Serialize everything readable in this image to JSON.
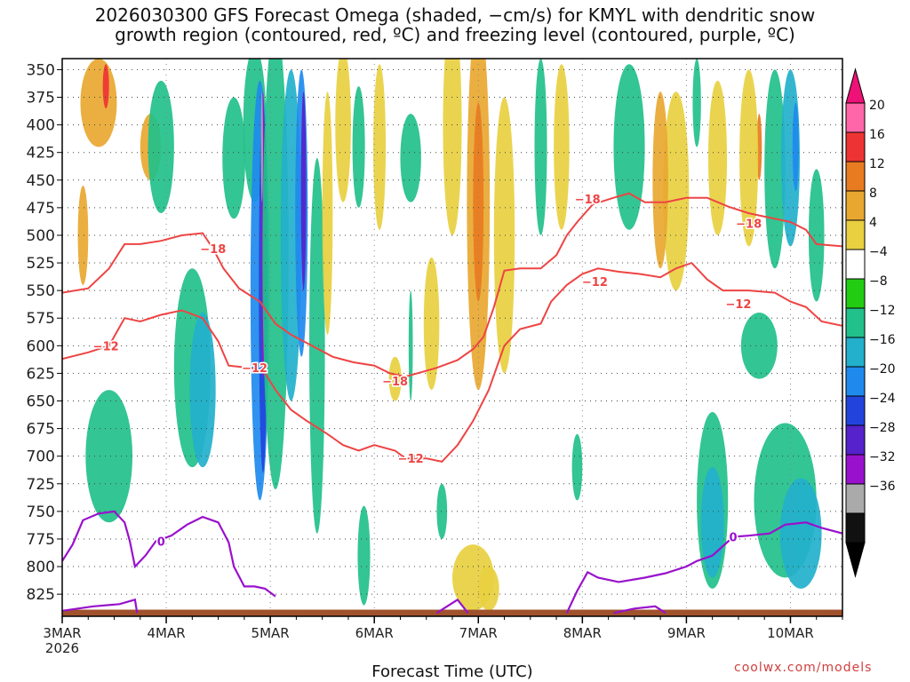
{
  "title": "2026030300 GFS Forecast Omega (shaded, −cm/s) for KMYL with dendritic snow\ngrowth region (contoured, red, ºC) and freezing level (contoured, purple, ºC)",
  "credit": "coolwx.com/models",
  "chart_data": {
    "type": "heatmap",
    "xlabel": "Forecast Time (UTC)",
    "x_ticks": [
      "3MAR",
      "4MAR",
      "5MAR",
      "6MAR",
      "7MAR",
      "8MAR",
      "9MAR",
      "10MAR"
    ],
    "x_tick_sublabel": "2026",
    "x_range_days": [
      0,
      7.5
    ],
    "y_ticks": [
      350,
      375,
      400,
      425,
      450,
      475,
      500,
      525,
      550,
      575,
      600,
      625,
      650,
      675,
      700,
      725,
      750,
      775,
      800,
      825
    ],
    "ylim": [
      340,
      845
    ],
    "grid": true,
    "colorbar": {
      "labels": [
        "20",
        "16",
        "12",
        "8",
        "4",
        "−4",
        "−8",
        "−12",
        "−16",
        "−20",
        "−24",
        "−28",
        "−32",
        "−36"
      ],
      "colors": [
        "#ff66aa",
        "#ee3333",
        "#e87b20",
        "#e8a830",
        "#e8d040",
        "#ffffff",
        "#22cc11",
        "#22c08a",
        "#22b0cc",
        "#1e8aee",
        "#2244dd",
        "#5522cc",
        "#9911cc",
        "#aaaaaa",
        "#111111"
      ],
      "top_color": "#ee1177",
      "bottom_color": "#000000"
    },
    "dgz_contour_labels": [
      {
        "value": "−18",
        "t": 1.45,
        "p": 512
      },
      {
        "value": "−12",
        "t": 1.85,
        "p": 620
      },
      {
        "value": "−12",
        "t": 0.42,
        "p": 600
      },
      {
        "value": "−18",
        "t": 3.2,
        "p": 632
      },
      {
        "value": "−12",
        "t": 3.35,
        "p": 702
      },
      {
        "value": "−18",
        "t": 5.05,
        "p": 467
      },
      {
        "value": "−12",
        "t": 5.12,
        "p": 542
      },
      {
        "value": "−18",
        "t": 6.6,
        "p": 489
      },
      {
        "value": "−12",
        "t": 6.5,
        "p": 562
      }
    ],
    "freezing_labels": [
      {
        "value": "0",
        "t": 0.95,
        "p": 777
      },
      {
        "value": "0",
        "t": 6.45,
        "p": 773
      }
    ],
    "dgz_contours": [
      [
        [
          0,
          552
        ],
        [
          0.25,
          548
        ],
        [
          0.45,
          530
        ],
        [
          0.6,
          508
        ],
        [
          0.75,
          508
        ],
        [
          0.95,
          505
        ],
        [
          1.15,
          500
        ],
        [
          1.35,
          498
        ],
        [
          1.45,
          512
        ],
        [
          1.55,
          530
        ],
        [
          1.7,
          548
        ],
        [
          1.9,
          560
        ],
        [
          2.05,
          580
        ],
        [
          2.2,
          590
        ],
        [
          2.4,
          600
        ],
        [
          2.6,
          610
        ],
        [
          2.8,
          615
        ],
        [
          3.0,
          618
        ],
        [
          3.15,
          625
        ],
        [
          3.3,
          628
        ],
        [
          3.45,
          624
        ],
        [
          3.6,
          620
        ],
        [
          3.8,
          613
        ],
        [
          3.95,
          603
        ],
        [
          4.05,
          592
        ],
        [
          4.15,
          565
        ],
        [
          4.25,
          532
        ],
        [
          4.4,
          530
        ],
        [
          4.6,
          530
        ],
        [
          4.75,
          518
        ],
        [
          4.85,
          500
        ],
        [
          4.95,
          488
        ],
        [
          5.1,
          472
        ],
        [
          5.3,
          466
        ],
        [
          5.45,
          462
        ],
        [
          5.6,
          470
        ],
        [
          5.8,
          470
        ],
        [
          6.0,
          466
        ],
        [
          6.2,
          466
        ],
        [
          6.4,
          474
        ],
        [
          6.6,
          480
        ],
        [
          6.8,
          484
        ],
        [
          7.0,
          488
        ],
        [
          7.15,
          495
        ],
        [
          7.25,
          508
        ],
        [
          7.5,
          510
        ]
      ],
      [
        [
          0,
          612
        ],
        [
          0.25,
          606
        ],
        [
          0.45,
          600
        ],
        [
          0.6,
          575
        ],
        [
          0.75,
          578
        ],
        [
          0.95,
          572
        ],
        [
          1.15,
          568
        ],
        [
          1.35,
          575
        ],
        [
          1.5,
          596
        ],
        [
          1.6,
          618
        ],
        [
          1.8,
          620
        ],
        [
          1.95,
          625
        ],
        [
          2.05,
          640
        ],
        [
          2.2,
          658
        ],
        [
          2.35,
          668
        ],
        [
          2.55,
          680
        ],
        [
          2.7,
          690
        ],
        [
          2.85,
          695
        ],
        [
          3.0,
          690
        ],
        [
          3.2,
          695
        ],
        [
          3.3,
          702
        ],
        [
          3.5,
          702
        ],
        [
          3.65,
          705
        ],
        [
          3.8,
          690
        ],
        [
          3.95,
          668
        ],
        [
          4.1,
          640
        ],
        [
          4.25,
          600
        ],
        [
          4.4,
          585
        ],
        [
          4.6,
          580
        ],
        [
          4.7,
          560
        ],
        [
          4.85,
          545
        ],
        [
          5.0,
          535
        ],
        [
          5.15,
          530
        ],
        [
          5.35,
          533
        ],
        [
          5.55,
          535
        ],
        [
          5.75,
          538
        ],
        [
          5.9,
          530
        ],
        [
          6.05,
          525
        ],
        [
          6.2,
          540
        ],
        [
          6.35,
          550
        ],
        [
          6.6,
          550
        ],
        [
          6.85,
          552
        ],
        [
          7.0,
          560
        ],
        [
          7.15,
          565
        ],
        [
          7.3,
          578
        ],
        [
          7.5,
          582
        ]
      ]
    ],
    "freezing_contours": [
      [
        [
          0,
          795
        ],
        [
          0.1,
          780
        ],
        [
          0.2,
          758
        ],
        [
          0.35,
          752
        ],
        [
          0.5,
          750
        ],
        [
          0.6,
          760
        ],
        [
          0.65,
          777
        ],
        [
          0.7,
          800
        ],
        [
          0.8,
          790
        ],
        [
          0.9,
          777
        ],
        [
          1.05,
          772
        ],
        [
          1.2,
          762
        ],
        [
          1.35,
          755
        ],
        [
          1.5,
          760
        ],
        [
          1.6,
          778
        ],
        [
          1.65,
          800
        ],
        [
          1.75,
          818
        ],
        [
          1.85,
          818
        ],
        [
          1.95,
          820
        ],
        [
          2.05,
          827
        ]
      ],
      [
        [
          0,
          840
        ],
        [
          0.3,
          836
        ],
        [
          0.55,
          834
        ],
        [
          0.7,
          830
        ],
        [
          0.72,
          842
        ]
      ],
      [
        [
          3.6,
          842
        ],
        [
          3.8,
          830
        ],
        [
          3.9,
          842
        ]
      ],
      [
        [
          4.85,
          842
        ],
        [
          4.95,
          822
        ],
        [
          5.05,
          805
        ],
        [
          5.15,
          810
        ],
        [
          5.35,
          814
        ],
        [
          5.6,
          810
        ],
        [
          5.8,
          806
        ],
        [
          6.0,
          800
        ],
        [
          6.1,
          795
        ],
        [
          6.25,
          790
        ],
        [
          6.45,
          773
        ],
        [
          6.6,
          772
        ],
        [
          6.8,
          770
        ],
        [
          6.95,
          762
        ],
        [
          7.15,
          760
        ],
        [
          7.3,
          765
        ],
        [
          7.5,
          770
        ]
      ],
      [
        [
          5.3,
          842
        ],
        [
          5.5,
          838
        ],
        [
          5.7,
          836
        ],
        [
          5.8,
          842
        ]
      ]
    ],
    "omega_patches": [
      {
        "value": 8,
        "t": 0.35,
        "p": 380,
        "w": 0.35,
        "h": 80
      },
      {
        "value": 16,
        "t": 0.42,
        "p": 365,
        "w": 0.06,
        "h": 40
      },
      {
        "value": 8,
        "t": 0.85,
        "p": 420,
        "w": 0.2,
        "h": 60
      },
      {
        "value": -8,
        "t": 0.95,
        "p": 420,
        "w": 0.25,
        "h": 120
      },
      {
        "value": 8,
        "t": 0.2,
        "p": 500,
        "w": 0.1,
        "h": 90
      },
      {
        "value": -8,
        "t": 1.25,
        "p": 620,
        "w": 0.35,
        "h": 180
      },
      {
        "value": -12,
        "t": 1.35,
        "p": 640,
        "w": 0.25,
        "h": 140
      },
      {
        "value": -8,
        "t": 0.45,
        "p": 700,
        "w": 0.45,
        "h": 120
      },
      {
        "value": -8,
        "t": 1.65,
        "p": 430,
        "w": 0.22,
        "h": 110
      },
      {
        "value": -8,
        "t": 1.85,
        "p": 400,
        "w": 0.22,
        "h": 140
      },
      {
        "value": -16,
        "t": 1.9,
        "p": 550,
        "w": 0.18,
        "h": 380
      },
      {
        "value": -20,
        "t": 1.93,
        "p": 550,
        "w": 0.08,
        "h": 330
      },
      {
        "value": -28,
        "t": 1.93,
        "p": 500,
        "w": 0.04,
        "h": 260
      },
      {
        "value": -32,
        "t": 1.92,
        "p": 420,
        "w": 0.02,
        "h": 100
      },
      {
        "value": -8,
        "t": 2.05,
        "p": 520,
        "w": 0.25,
        "h": 420
      },
      {
        "value": -12,
        "t": 2.2,
        "p": 500,
        "w": 0.2,
        "h": 300
      },
      {
        "value": -16,
        "t": 2.3,
        "p": 480,
        "w": 0.12,
        "h": 260
      },
      {
        "value": -24,
        "t": 2.32,
        "p": 460,
        "w": 0.05,
        "h": 180
      },
      {
        "value": -8,
        "t": 2.45,
        "p": 600,
        "w": 0.15,
        "h": 340
      },
      {
        "value": 4,
        "t": 2.7,
        "p": 400,
        "w": 0.15,
        "h": 140
      },
      {
        "value": 4,
        "t": 2.55,
        "p": 480,
        "w": 0.1,
        "h": 220
      },
      {
        "value": -8,
        "t": 2.85,
        "p": 420,
        "w": 0.12,
        "h": 110
      },
      {
        "value": 4,
        "t": 3.05,
        "p": 420,
        "w": 0.12,
        "h": 150
      },
      {
        "value": 4,
        "t": 3.55,
        "p": 580,
        "w": 0.15,
        "h": 120
      },
      {
        "value": -8,
        "t": 3.35,
        "p": 600,
        "w": 0.04,
        "h": 100
      },
      {
        "value": -8,
        "t": 3.35,
        "p": 430,
        "w": 0.2,
        "h": 80
      },
      {
        "value": 4,
        "t": 3.75,
        "p": 400,
        "w": 0.18,
        "h": 200
      },
      {
        "value": 8,
        "t": 4.0,
        "p": 470,
        "w": 0.22,
        "h": 340
      },
      {
        "value": 12,
        "t": 4.0,
        "p": 470,
        "w": 0.1,
        "h": 180
      },
      {
        "value": 4,
        "t": 4.25,
        "p": 500,
        "w": 0.2,
        "h": 250
      },
      {
        "value": -8,
        "t": 4.6,
        "p": 420,
        "w": 0.12,
        "h": 160
      },
      {
        "value": 4,
        "t": 4.8,
        "p": 420,
        "w": 0.15,
        "h": 150
      },
      {
        "value": -8,
        "t": 5.45,
        "p": 420,
        "w": 0.3,
        "h": 150
      },
      {
        "value": 4,
        "t": 5.9,
        "p": 460,
        "w": 0.25,
        "h": 180
      },
      {
        "value": 8,
        "t": 5.75,
        "p": 450,
        "w": 0.15,
        "h": 160
      },
      {
        "value": 4,
        "t": 6.3,
        "p": 430,
        "w": 0.18,
        "h": 140
      },
      {
        "value": -8,
        "t": 6.1,
        "p": 380,
        "w": 0.08,
        "h": 80
      },
      {
        "value": 12,
        "t": 6.7,
        "p": 420,
        "w": 0.05,
        "h": 60
      },
      {
        "value": 4,
        "t": 6.6,
        "p": 430,
        "w": 0.18,
        "h": 160
      },
      {
        "value": -8,
        "t": 6.85,
        "p": 440,
        "w": 0.2,
        "h": 180
      },
      {
        "value": -12,
        "t": 7.0,
        "p": 430,
        "w": 0.18,
        "h": 160
      },
      {
        "value": -16,
        "t": 7.05,
        "p": 420,
        "w": 0.06,
        "h": 80
      },
      {
        "value": -8,
        "t": 7.25,
        "p": 500,
        "w": 0.15,
        "h": 120
      },
      {
        "value": -8,
        "t": 6.25,
        "p": 740,
        "w": 0.3,
        "h": 160
      },
      {
        "value": -12,
        "t": 6.25,
        "p": 760,
        "w": 0.22,
        "h": 100
      },
      {
        "value": -8,
        "t": 6.95,
        "p": 740,
        "w": 0.6,
        "h": 140
      },
      {
        "value": -12,
        "t": 7.1,
        "p": 770,
        "w": 0.4,
        "h": 100
      },
      {
        "value": -8,
        "t": 6.7,
        "p": 600,
        "w": 0.35,
        "h": 60
      },
      {
        "value": -8,
        "t": 4.95,
        "p": 710,
        "w": 0.1,
        "h": 60
      },
      {
        "value": -8,
        "t": 2.9,
        "p": 790,
        "w": 0.12,
        "h": 90
      },
      {
        "value": 4,
        "t": 3.95,
        "p": 810,
        "w": 0.4,
        "h": 60
      },
      {
        "value": 4,
        "t": 4.1,
        "p": 820,
        "w": 0.2,
        "h": 40
      },
      {
        "value": -8,
        "t": 3.65,
        "p": 750,
        "w": 0.1,
        "h": 50
      },
      {
        "value": 4,
        "t": 3.2,
        "p": 630,
        "w": 0.12,
        "h": 40
      }
    ]
  }
}
